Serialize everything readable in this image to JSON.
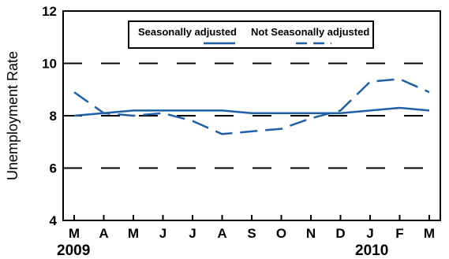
{
  "chart_data": {
    "type": "line",
    "title": "",
    "xlabel": "",
    "ylabel": "Unemployment Rate",
    "categories": [
      "M",
      "A",
      "M",
      "J",
      "J",
      "A",
      "S",
      "O",
      "N",
      "D",
      "J",
      "F",
      "M"
    ],
    "year_labels": [
      "2009",
      "2010"
    ],
    "ylim": [
      4,
      12
    ],
    "yticks": [
      4,
      6,
      8,
      10,
      12
    ],
    "grid": "dashed horizontal at 6, 8, 10",
    "legend_position": "top-center",
    "series": [
      {
        "name": "Seasonally adjusted",
        "style": "solid",
        "color": "#1f5fa8",
        "values": [
          8.0,
          8.1,
          8.2,
          8.2,
          8.2,
          8.2,
          8.1,
          8.1,
          8.1,
          8.1,
          8.2,
          8.3,
          8.2
        ]
      },
      {
        "name": "Not Seasonally adjusted",
        "style": "dashed",
        "color": "#1f5fa8",
        "values": [
          8.9,
          8.1,
          8.0,
          8.1,
          7.8,
          7.3,
          7.4,
          7.5,
          7.9,
          8.2,
          9.3,
          9.4,
          8.9
        ]
      }
    ]
  }
}
